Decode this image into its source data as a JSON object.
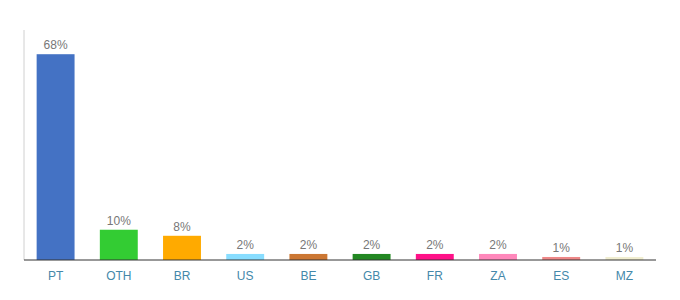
{
  "chart_data": {
    "type": "bar",
    "categories": [
      "PT",
      "OTH",
      "BR",
      "US",
      "BE",
      "GB",
      "FR",
      "ZA",
      "ES",
      "MZ"
    ],
    "values": [
      68,
      10,
      8,
      2,
      2,
      2,
      2,
      2,
      1,
      1
    ],
    "value_labels": [
      "68%",
      "10%",
      "8%",
      "2%",
      "2%",
      "2%",
      "2%",
      "2%",
      "1%",
      "1%"
    ],
    "colors": [
      "#4472C4",
      "#33CC33",
      "#FFAA00",
      "#88DDFF",
      "#CC7733",
      "#228822",
      "#FF1188",
      "#FF88BB",
      "#EE8888",
      "#F0EDD0"
    ],
    "ylim": [
      0,
      76
    ],
    "data_labels": true,
    "tick_labels": "x",
    "grid": false
  }
}
